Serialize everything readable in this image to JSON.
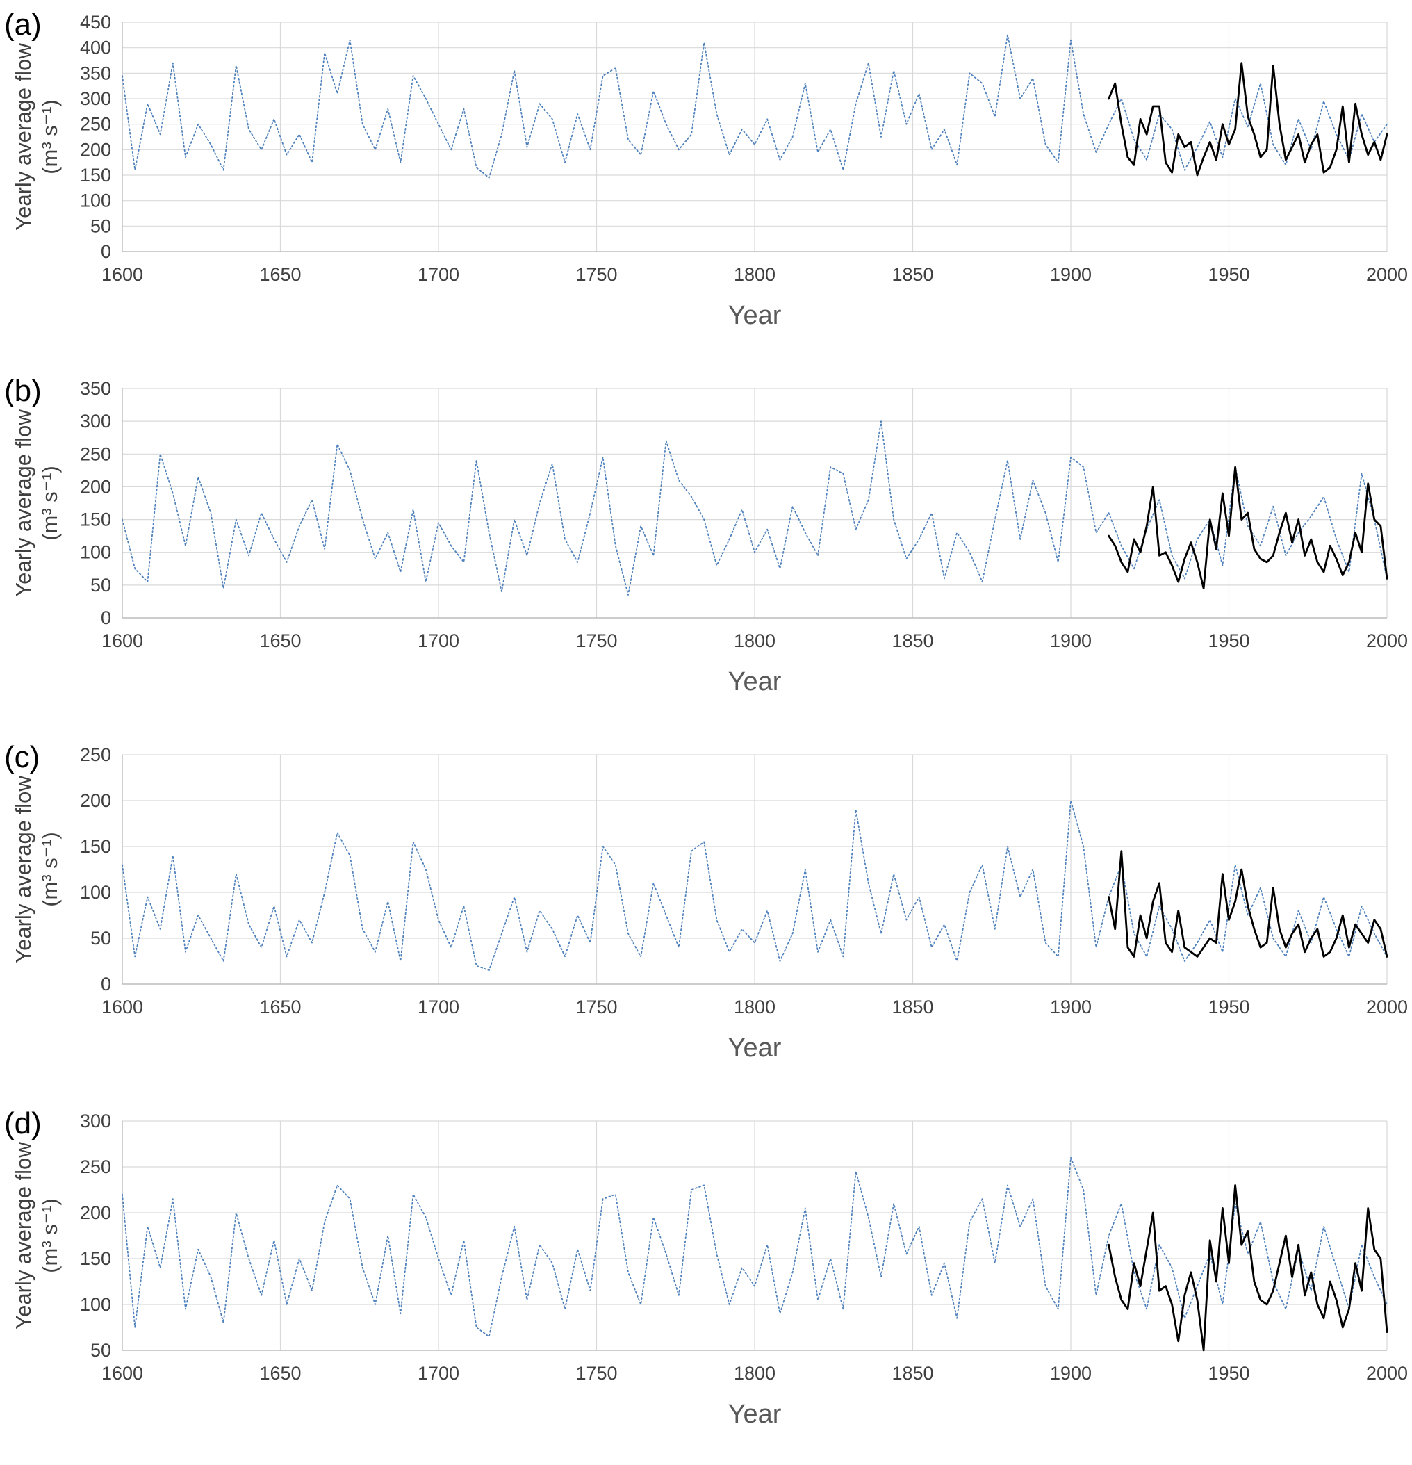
{
  "figure": {
    "description": "Four stacked line charts of yearly average river flow, reconstructed (blue dotted, 1600-2000) and observed (black solid, 1912-2000)",
    "xlabel": "Year",
    "ylabel_line1": "Yearly average flow",
    "ylabel_line2": "(m³ s⁻¹)"
  },
  "chart_data": [
    {
      "type": "line",
      "panel_label": "(a)",
      "xlabel": "Year",
      "ylabel": "Yearly average flow (m³ s⁻¹)",
      "ylabel_lines": [
        "Yearly average flow",
        "(m³ s⁻¹)"
      ],
      "xlim": [
        1600,
        2000
      ],
      "ylim": [
        0,
        450
      ],
      "xticks": [
        1600,
        1650,
        1700,
        1750,
        1800,
        1850,
        1900,
        1950,
        2000
      ],
      "yticks": [
        0,
        50,
        100,
        150,
        200,
        250,
        300,
        350,
        400,
        450
      ],
      "grid": true,
      "legend": "none",
      "series": [
        {
          "name": "series-dotted",
          "description": "blue dotted line (full record 1600-2000)",
          "line_style": "dotted",
          "color": "#4f81bd",
          "x_start": 1600,
          "x_step": 4,
          "values": [
            345,
            160,
            290,
            230,
            370,
            185,
            250,
            210,
            160,
            365,
            240,
            200,
            260,
            190,
            230,
            175,
            390,
            310,
            415,
            250,
            200,
            280,
            175,
            345,
            300,
            250,
            200,
            280,
            165,
            145,
            230,
            355,
            205,
            290,
            260,
            175,
            270,
            200,
            345,
            360,
            220,
            190,
            315,
            250,
            200,
            230,
            410,
            270,
            190,
            240,
            210,
            260,
            180,
            225,
            330,
            195,
            240,
            160,
            290,
            370,
            225,
            355,
            250,
            310,
            200,
            240,
            170,
            350,
            330,
            265,
            425,
            300,
            340,
            210,
            175,
            415,
            270,
            195,
            250,
            300,
            220,
            180,
            270,
            240,
            160,
            205,
            255,
            185,
            300,
            245,
            330,
            210,
            170,
            260,
            200,
            295,
            230,
            180,
            270,
            215,
            250
          ]
        },
        {
          "name": "series-solid",
          "description": "black solid line (1912-2000)",
          "line_style": "solid",
          "color": "#000000",
          "x_start": 1912,
          "x_step": 2,
          "values": [
            300,
            330,
            250,
            185,
            170,
            260,
            230,
            285,
            285,
            175,
            155,
            230,
            205,
            215,
            150,
            185,
            215,
            180,
            250,
            210,
            240,
            370,
            265,
            230,
            185,
            200,
            365,
            250,
            180,
            205,
            230,
            175,
            210,
            230,
            155,
            165,
            200,
            285,
            175,
            290,
            230,
            190,
            215,
            180,
            230
          ]
        }
      ]
    },
    {
      "type": "line",
      "panel_label": "(b)",
      "xlabel": "Year",
      "ylabel": "Yearly average flow (m³ s⁻¹)",
      "ylabel_lines": [
        "Yearly average flow",
        "(m³ s⁻¹)"
      ],
      "xlim": [
        1600,
        2000
      ],
      "ylim": [
        0,
        350
      ],
      "xticks": [
        1600,
        1650,
        1700,
        1750,
        1800,
        1850,
        1900,
        1950,
        2000
      ],
      "yticks": [
        0,
        50,
        100,
        150,
        200,
        250,
        300,
        350
      ],
      "grid": true,
      "legend": "none",
      "series": [
        {
          "name": "series-dotted",
          "description": "blue dotted line (full record 1600-2000)",
          "line_style": "dotted",
          "color": "#4f81bd",
          "x_start": 1600,
          "x_step": 4,
          "values": [
            150,
            75,
            55,
            250,
            190,
            110,
            215,
            160,
            45,
            150,
            95,
            160,
            120,
            85,
            140,
            180,
            105,
            265,
            225,
            150,
            90,
            130,
            70,
            165,
            55,
            145,
            110,
            85,
            240,
            130,
            40,
            150,
            95,
            175,
            235,
            120,
            85,
            160,
            245,
            110,
            35,
            140,
            95,
            270,
            210,
            185,
            150,
            80,
            120,
            165,
            100,
            135,
            75,
            170,
            130,
            95,
            230,
            220,
            135,
            180,
            300,
            150,
            90,
            120,
            160,
            60,
            130,
            100,
            55,
            150,
            240,
            120,
            210,
            160,
            85,
            245,
            230,
            130,
            160,
            110,
            75,
            135,
            180,
            95,
            60,
            120,
            150,
            80,
            230,
            140,
            110,
            170,
            95,
            130,
            155,
            185,
            120,
            70,
            220,
            150,
            60
          ]
        },
        {
          "name": "series-solid",
          "description": "black solid line (1912-2000)",
          "line_style": "solid",
          "color": "#000000",
          "x_start": 1912,
          "x_step": 2,
          "values": [
            125,
            110,
            85,
            70,
            120,
            100,
            140,
            200,
            95,
            100,
            80,
            55,
            90,
            115,
            85,
            45,
            150,
            105,
            190,
            125,
            230,
            150,
            160,
            105,
            90,
            85,
            95,
            130,
            160,
            115,
            150,
            95,
            120,
            85,
            70,
            110,
            90,
            65,
            85,
            130,
            100,
            205,
            150,
            140,
            60
          ]
        }
      ]
    },
    {
      "type": "line",
      "panel_label": "(c)",
      "xlabel": "Year",
      "ylabel": "Yearly average flow (m³ s⁻¹)",
      "ylabel_lines": [
        "Yearly average flow",
        "(m³ s⁻¹)"
      ],
      "xlim": [
        1600,
        2000
      ],
      "ylim": [
        0,
        250
      ],
      "xticks": [
        1600,
        1650,
        1700,
        1750,
        1800,
        1850,
        1900,
        1950,
        2000
      ],
      "yticks": [
        0,
        50,
        100,
        150,
        200,
        250
      ],
      "grid": true,
      "legend": "none",
      "series": [
        {
          "name": "series-dotted",
          "description": "blue dotted line (full record 1600-2000)",
          "line_style": "dotted",
          "color": "#4f81bd",
          "x_start": 1600,
          "x_step": 4,
          "values": [
            130,
            30,
            95,
            60,
            140,
            35,
            75,
            50,
            25,
            120,
            65,
            40,
            85,
            30,
            70,
            45,
            100,
            165,
            140,
            60,
            35,
            90,
            25,
            155,
            125,
            70,
            40,
            85,
            20,
            15,
            55,
            95,
            35,
            80,
            60,
            30,
            75,
            45,
            150,
            130,
            55,
            30,
            110,
            75,
            40,
            145,
            155,
            70,
            35,
            60,
            45,
            80,
            25,
            55,
            125,
            35,
            70,
            30,
            190,
            110,
            55,
            120,
            70,
            95,
            40,
            65,
            25,
            100,
            130,
            60,
            150,
            95,
            125,
            45,
            30,
            200,
            150,
            40,
            95,
            130,
            55,
            30,
            85,
            60,
            25,
            45,
            70,
            35,
            130,
            75,
            105,
            50,
            30,
            80,
            45,
            95,
            60,
            30,
            85,
            55,
            30
          ]
        },
        {
          "name": "series-solid",
          "description": "black solid line (1912-2000)",
          "line_style": "solid",
          "color": "#000000",
          "x_start": 1912,
          "x_step": 2,
          "values": [
            95,
            60,
            145,
            40,
            30,
            75,
            50,
            90,
            110,
            45,
            35,
            80,
            40,
            35,
            30,
            40,
            50,
            45,
            120,
            70,
            90,
            125,
            85,
            60,
            40,
            45,
            105,
            60,
            40,
            55,
            65,
            35,
            50,
            60,
            30,
            35,
            50,
            75,
            40,
            65,
            55,
            45,
            70,
            60,
            30
          ]
        }
      ]
    },
    {
      "type": "line",
      "panel_label": "(d)",
      "xlabel": "Year",
      "ylabel": "Yearly average flow (m³ s⁻¹)",
      "ylabel_lines": [
        "Yearly average flow",
        "(m³ s⁻¹)"
      ],
      "xlim": [
        1600,
        2000
      ],
      "ylim": [
        50,
        300
      ],
      "xticks": [
        1600,
        1650,
        1700,
        1750,
        1800,
        1850,
        1900,
        1950,
        2000
      ],
      "yticks": [
        50,
        100,
        150,
        200,
        250,
        300
      ],
      "grid": true,
      "legend": "none",
      "series": [
        {
          "name": "series-dotted",
          "description": "blue dotted line (full record 1600-2000)",
          "line_style": "dotted",
          "color": "#4f81bd",
          "x_start": 1600,
          "x_step": 4,
          "values": [
            220,
            75,
            185,
            140,
            215,
            95,
            160,
            130,
            80,
            200,
            150,
            110,
            170,
            100,
            150,
            115,
            190,
            230,
            215,
            140,
            100,
            175,
            90,
            220,
            195,
            150,
            110,
            170,
            75,
            65,
            130,
            185,
            105,
            165,
            145,
            95,
            160,
            115,
            215,
            220,
            135,
            100,
            195,
            155,
            110,
            225,
            230,
            155,
            100,
            140,
            120,
            165,
            90,
            135,
            205,
            105,
            150,
            95,
            245,
            195,
            130,
            210,
            155,
            185,
            110,
            145,
            85,
            190,
            215,
            145,
            230,
            185,
            215,
            120,
            95,
            260,
            225,
            110,
            175,
            210,
            135,
            95,
            165,
            140,
            85,
            120,
            155,
            100,
            210,
            155,
            190,
            125,
            95,
            160,
            115,
            185,
            140,
            95,
            165,
            130,
            100
          ]
        },
        {
          "name": "series-solid",
          "description": "black solid line (1912-2000)",
          "line_style": "solid",
          "color": "#000000",
          "x_start": 1912,
          "x_step": 2,
          "values": [
            165,
            130,
            105,
            95,
            145,
            120,
            160,
            200,
            115,
            120,
            100,
            60,
            110,
            135,
            105,
            50,
            170,
            125,
            205,
            145,
            230,
            165,
            180,
            125,
            105,
            100,
            115,
            145,
            175,
            130,
            165,
            110,
            135,
            100,
            85,
            125,
            105,
            75,
            95,
            145,
            115,
            205,
            160,
            150,
            70
          ]
        }
      ]
    }
  ]
}
